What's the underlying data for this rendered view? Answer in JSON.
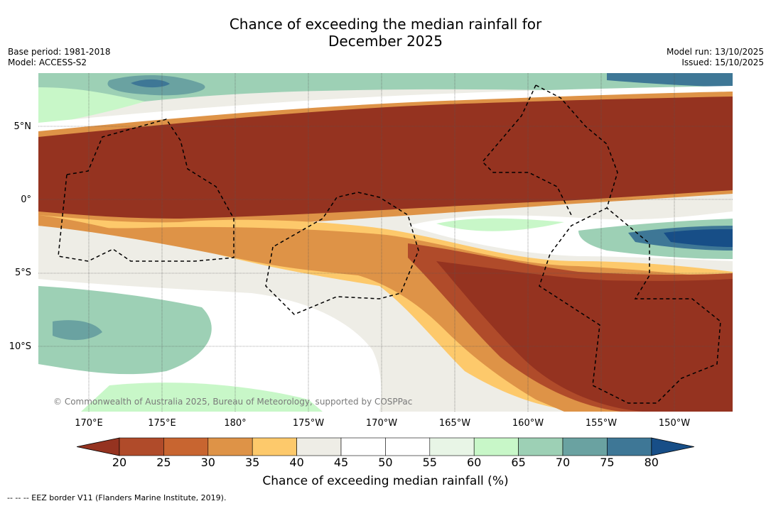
{
  "header": {
    "title_line1": "Chance of exceeding the median rainfall for",
    "title_line2": "December 2025",
    "base_period": "Base period: 1981-2018",
    "model": "Model: ACCESS-S2",
    "model_run": "Model run: 13/10/2025",
    "issued": "Issued: 15/10/2025"
  },
  "map": {
    "lat_labels": [
      "5°N",
      "0°",
      "5°S",
      "10°S"
    ],
    "lon_labels": [
      "170°E",
      "175°E",
      "180°",
      "175°W",
      "170°W",
      "165°W",
      "160°W",
      "155°W",
      "150°W"
    ],
    "copyright": "© Commonwealth of Australia 2025, Bureau of Meteorology, supported by COSPPac"
  },
  "colorbar": {
    "label": "Chance of exceeding median rainfall (%)",
    "ticks": [
      "20",
      "25",
      "30",
      "35",
      "40",
      "45",
      "50",
      "55",
      "60",
      "65",
      "70",
      "75",
      "80"
    ],
    "colors": [
      "#953320",
      "#b04b2a",
      "#c86530",
      "#de9347",
      "#fdc96b",
      "#eeede6",
      "#ffffff",
      "#ffffff",
      "#e8f5e6",
      "#c8f7c8",
      "#9dd0b5",
      "#6aa2a1",
      "#3e7796",
      "#174e87"
    ]
  },
  "footnote": "--  --  -- EEZ border V11 (Flanders Marine Institute, 2019)."
}
